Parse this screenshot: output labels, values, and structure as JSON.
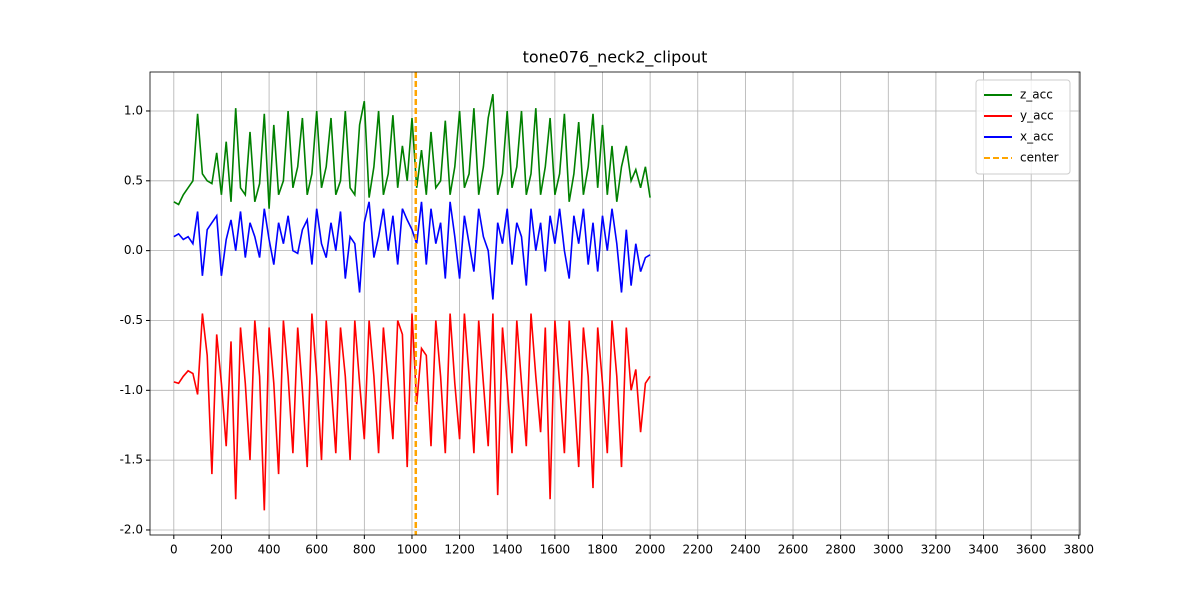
{
  "chart_data": {
    "type": "line",
    "title": "tone076_neck2_clipout",
    "x": [
      0,
      20,
      40,
      60,
      80,
      100,
      120,
      140,
      160,
      180,
      200,
      220,
      240,
      260,
      280,
      300,
      320,
      340,
      360,
      380,
      400,
      420,
      440,
      460,
      480,
      500,
      520,
      540,
      560,
      580,
      600,
      620,
      640,
      660,
      680,
      700,
      720,
      740,
      760,
      780,
      800,
      820,
      840,
      860,
      880,
      900,
      920,
      940,
      960,
      980,
      1000,
      1020,
      1040,
      1060,
      1080,
      1100,
      1120,
      1140,
      1160,
      1180,
      1200,
      1220,
      1240,
      1260,
      1280,
      1300,
      1320,
      1340,
      1360,
      1380,
      1400,
      1420,
      1440,
      1460,
      1480,
      1500,
      1520,
      1540,
      1560,
      1580,
      1600,
      1620,
      1640,
      1660,
      1680,
      1700,
      1720,
      1740,
      1760,
      1780,
      1800,
      1820,
      1840,
      1860,
      1880,
      1900,
      1920,
      1940,
      1960,
      1980,
      2000
    ],
    "series": [
      {
        "name": "z_acc",
        "color": "#008000",
        "values": [
          0.35,
          0.33,
          0.4,
          0.45,
          0.5,
          0.98,
          0.55,
          0.5,
          0.48,
          0.7,
          0.4,
          0.78,
          0.35,
          1.02,
          0.45,
          0.4,
          0.85,
          0.35,
          0.48,
          0.98,
          0.3,
          0.9,
          0.4,
          0.5,
          1.0,
          0.45,
          0.6,
          0.95,
          0.4,
          0.55,
          1.0,
          0.45,
          0.6,
          0.95,
          0.4,
          0.5,
          1.0,
          0.45,
          0.4,
          0.9,
          1.07,
          0.38,
          0.6,
          1.0,
          0.4,
          0.55,
          0.97,
          0.45,
          0.75,
          0.5,
          0.95,
          0.45,
          0.72,
          0.4,
          0.85,
          0.45,
          0.5,
          0.93,
          0.4,
          0.6,
          1.0,
          0.45,
          0.55,
          1.02,
          0.4,
          0.6,
          0.95,
          1.12,
          0.4,
          0.55,
          1.0,
          0.45,
          0.6,
          1.0,
          0.4,
          0.55,
          1.02,
          0.4,
          0.6,
          0.95,
          0.4,
          0.55,
          0.98,
          0.35,
          0.55,
          0.92,
          0.4,
          0.6,
          0.98,
          0.45,
          0.9,
          0.4,
          0.75,
          0.35,
          0.6,
          0.75,
          0.5,
          0.58,
          0.45,
          0.6,
          0.38
        ]
      },
      {
        "name": "y_acc",
        "color": "#ff0000",
        "values": [
          -0.94,
          -0.95,
          -0.9,
          -0.86,
          -0.88,
          -1.03,
          -0.45,
          -0.75,
          -1.6,
          -0.6,
          -0.95,
          -1.4,
          -0.65,
          -1.78,
          -0.55,
          -0.95,
          -1.5,
          -0.5,
          -0.9,
          -1.86,
          -0.55,
          -0.95,
          -1.6,
          -0.5,
          -0.9,
          -1.45,
          -0.55,
          -1.0,
          -1.55,
          -0.45,
          -0.9,
          -1.5,
          -0.5,
          -0.95,
          -1.45,
          -0.55,
          -0.9,
          -1.5,
          -0.5,
          -0.95,
          -1.35,
          -0.5,
          -0.9,
          -1.45,
          -0.55,
          -0.95,
          -1.35,
          -0.5,
          -0.6,
          -1.55,
          -0.45,
          -1.1,
          -0.7,
          -0.75,
          -1.4,
          -0.5,
          -0.9,
          -1.45,
          -0.45,
          -0.95,
          -1.35,
          -0.45,
          -0.9,
          -1.45,
          -0.5,
          -0.95,
          -1.4,
          -0.45,
          -1.75,
          -0.55,
          -0.95,
          -1.45,
          -0.5,
          -0.95,
          -1.4,
          -0.45,
          -0.9,
          -1.3,
          -0.55,
          -1.78,
          -0.5,
          -0.95,
          -1.45,
          -0.5,
          -1.0,
          -1.55,
          -0.55,
          -0.9,
          -1.7,
          -0.55,
          -0.95,
          -1.45,
          -0.5,
          -0.9,
          -1.55,
          -0.55,
          -1.0,
          -0.85,
          -1.3,
          -0.95,
          -0.9
        ]
      },
      {
        "name": "x_acc",
        "color": "#0000ff",
        "values": [
          0.1,
          0.12,
          0.08,
          0.1,
          0.05,
          0.28,
          -0.18,
          0.15,
          0.2,
          0.25,
          -0.18,
          0.08,
          0.22,
          0.0,
          0.28,
          -0.05,
          0.2,
          0.1,
          -0.05,
          0.3,
          0.08,
          -0.1,
          0.2,
          0.05,
          0.25,
          0.0,
          -0.02,
          0.15,
          0.22,
          -0.1,
          0.3,
          0.05,
          -0.05,
          0.2,
          0.0,
          0.28,
          -0.2,
          0.1,
          0.05,
          -0.3,
          0.2,
          0.35,
          -0.05,
          0.1,
          0.3,
          0.0,
          0.25,
          -0.1,
          0.3,
          0.22,
          0.15,
          0.05,
          0.35,
          -0.1,
          0.3,
          0.05,
          0.2,
          -0.2,
          0.35,
          0.1,
          -0.2,
          0.25,
          0.05,
          -0.15,
          0.3,
          0.1,
          0.0,
          -0.35,
          0.2,
          0.05,
          0.3,
          -0.1,
          0.2,
          0.1,
          -0.25,
          0.3,
          0.0,
          0.2,
          -0.15,
          0.25,
          0.05,
          0.3,
          0.0,
          -0.2,
          0.25,
          0.05,
          0.3,
          -0.1,
          0.2,
          -0.15,
          0.25,
          0.0,
          0.3,
          0.05,
          -0.3,
          0.15,
          -0.25,
          0.05,
          -0.15,
          -0.05,
          -0.03
        ]
      }
    ],
    "vline": {
      "name": "center",
      "color": "#ffa500",
      "x": 1016
    },
    "xlim": [
      -100,
      3805
    ],
    "ylim": [
      -2.036,
      1.279
    ],
    "xticks": [
      0,
      200,
      400,
      600,
      800,
      1000,
      1200,
      1400,
      1600,
      1800,
      2000,
      2200,
      2400,
      2600,
      2800,
      3000,
      3200,
      3400,
      3600,
      3800
    ],
    "yticks": [
      {
        "value": -2,
        "label": "-2.0"
      },
      -1.5,
      {
        "value": -1,
        "label": "-1.0"
      },
      -0.5,
      {
        "value": 0,
        "label": "0.0"
      },
      0.5,
      {
        "value": 1,
        "label": "1.0"
      }
    ],
    "grid": true,
    "legend": "upper right"
  }
}
